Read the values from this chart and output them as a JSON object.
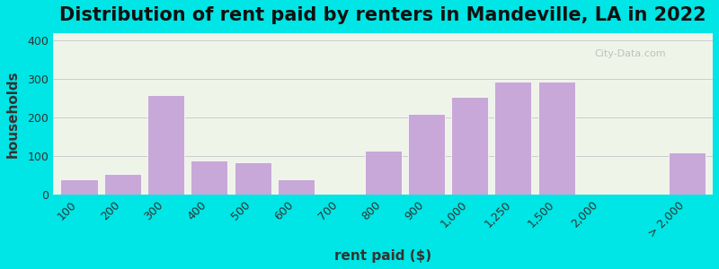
{
  "title": "Distribution of rent paid by renters in Mandeville, LA in 2022",
  "xlabel": "rent paid ($)",
  "ylabel": "households",
  "categories": [
    "100",
    "200",
    "300",
    "400",
    "500",
    "600",
    "700",
    "800",
    "900",
    "1,000",
    "1,250",
    "1,500",
    "2,000",
    "> 2,000"
  ],
  "values": [
    40,
    55,
    260,
    90,
    85,
    40,
    0,
    115,
    210,
    255,
    295,
    295,
    0,
    110
  ],
  "positions": [
    0,
    1,
    2,
    3,
    4,
    5,
    6,
    7,
    8,
    9,
    10,
    11,
    12,
    14
  ],
  "bar_color": "#c8a8d8",
  "bar_edgecolor": "#ffffff",
  "background_outer": "#00e5e5",
  "background_inner": "#eef5e8",
  "yticks": [
    0,
    100,
    200,
    300,
    400
  ],
  "ylim": [
    0,
    420
  ],
  "watermark": "City-Data.com",
  "title_fontsize": 15,
  "axis_label_fontsize": 11,
  "tick_fontsize": 9
}
